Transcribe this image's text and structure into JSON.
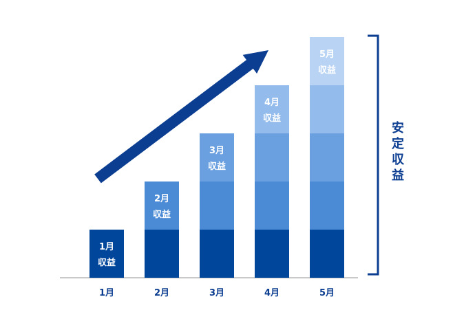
{
  "chart_data": {
    "type": "bar",
    "stacked": true,
    "categories": [
      "1月",
      "2月",
      "3月",
      "4月",
      "5月"
    ],
    "series": [
      {
        "name": "1月収益",
        "values": [
          1,
          1,
          1,
          1,
          1
        ],
        "color": "#00469b"
      },
      {
        "name": "2月収益",
        "values": [
          0,
          1,
          1,
          1,
          1
        ],
        "color": "#4b8bd6"
      },
      {
        "name": "3月収益",
        "values": [
          0,
          0,
          1,
          1,
          1
        ],
        "color": "#6a9fe0"
      },
      {
        "name": "4月収益",
        "values": [
          0,
          0,
          0,
          1,
          1
        ],
        "color": "#93bcec"
      },
      {
        "name": "5月収益",
        "values": [
          0,
          0,
          0,
          0,
          1
        ],
        "color": "#b9d3f4"
      }
    ],
    "segment_labels": [
      {
        "line1": "1月",
        "line2": "収益",
        "series": 0,
        "category": 0
      },
      {
        "line1": "2月",
        "line2": "収益",
        "series": 1,
        "category": 1
      },
      {
        "line1": "3月",
        "line2": "収益",
        "series": 2,
        "category": 2
      },
      {
        "line1": "4月",
        "line2": "収益",
        "series": 3,
        "category": 3
      },
      {
        "line1": "5月",
        "line2": "収益",
        "series": 4,
        "category": 4
      }
    ],
    "bracket_label": "安定収益",
    "arrow": "increasing trend",
    "ylim": [
      0,
      5
    ],
    "title": "",
    "xlabel": "",
    "ylabel": "",
    "grid": false,
    "accent_color": "#0b3d91",
    "axis_color": "#c9c9c9"
  }
}
